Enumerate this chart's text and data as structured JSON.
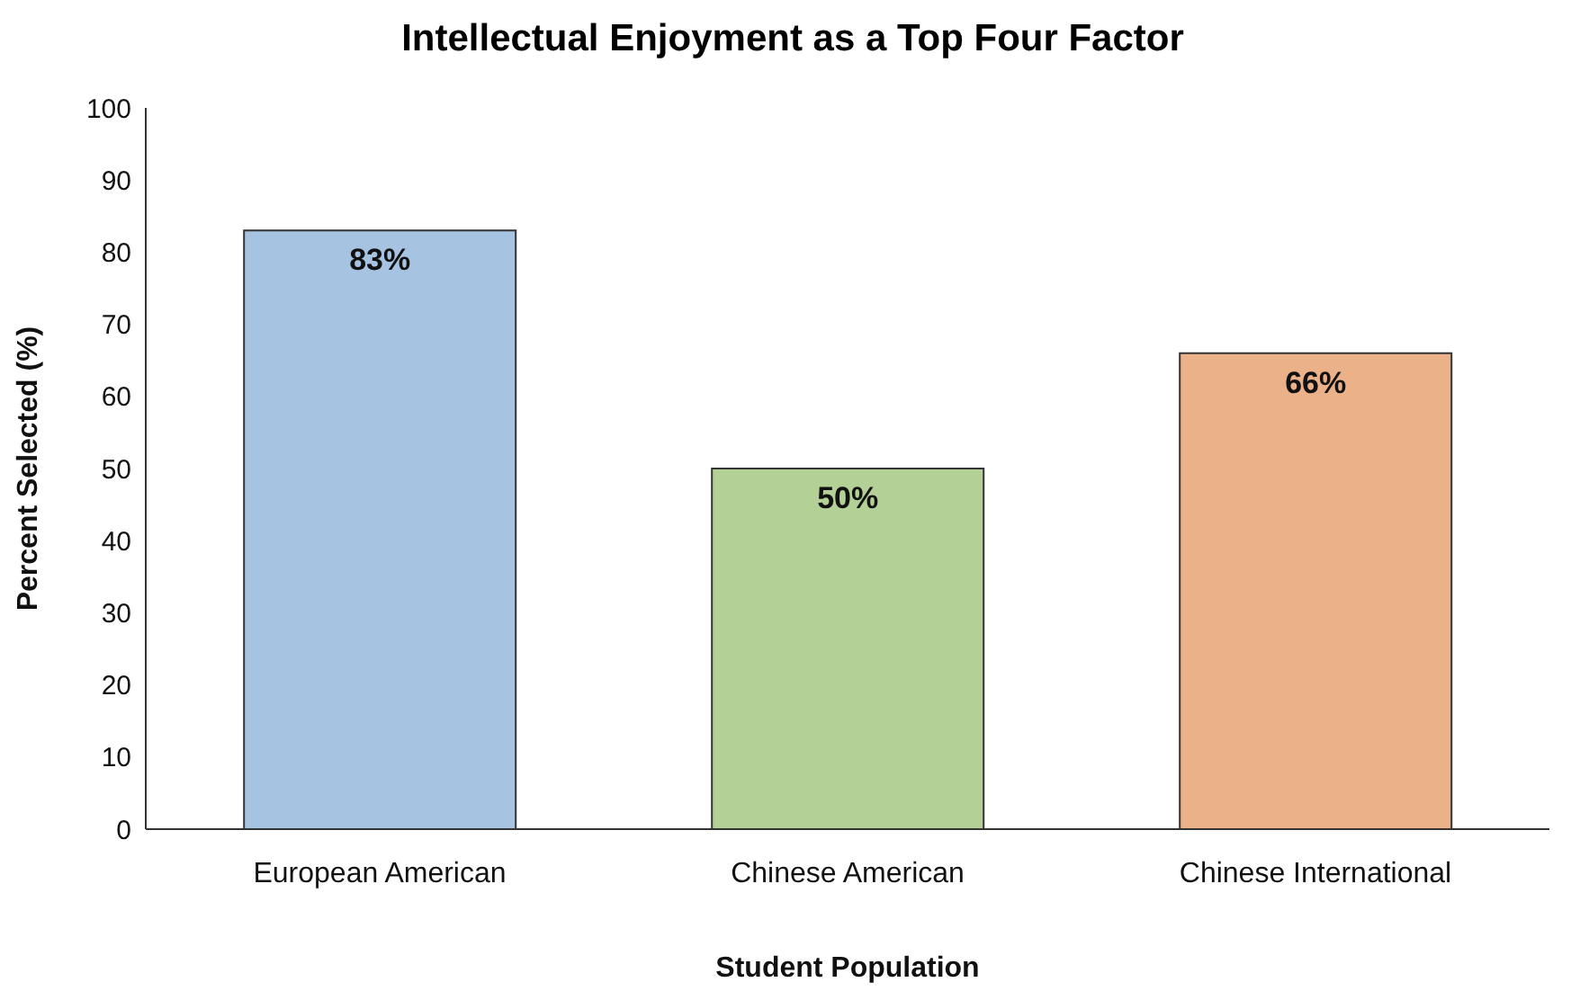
{
  "chart_data": {
    "type": "bar",
    "title": "Intellectual Enjoyment as a Top Four Factor",
    "xlabel": "Student Population",
    "ylabel": "Percent Selected (%)",
    "categories": [
      "European American",
      "Chinese American",
      "Chinese International"
    ],
    "values": [
      83,
      50,
      66
    ],
    "colors": [
      "#a7c3e2",
      "#b3d197",
      "#ebb189"
    ],
    "value_labels": [
      "83%",
      "50%",
      "66%"
    ],
    "ylim": [
      0,
      100
    ],
    "yticks": [
      0,
      10,
      20,
      30,
      40,
      50,
      60,
      70,
      80,
      90,
      100
    ],
    "grid": false
  }
}
